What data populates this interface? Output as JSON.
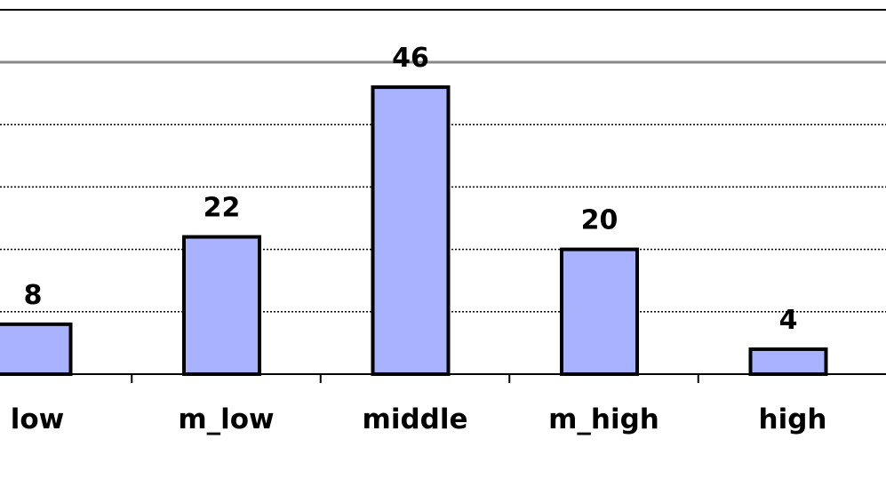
{
  "chart_data": {
    "type": "bar",
    "categories": [
      "low",
      "m_low",
      "middle",
      "m_high",
      "high"
    ],
    "values": [
      8,
      22,
      46,
      20,
      4
    ],
    "title": "",
    "xlabel": "",
    "ylabel": "",
    "ylim": [
      0,
      50
    ],
    "grid": true,
    "bar_color": "#a8b2ff",
    "bar_edge_color": "#000000",
    "grid_color": "#000000",
    "frame_color": "#888888"
  }
}
